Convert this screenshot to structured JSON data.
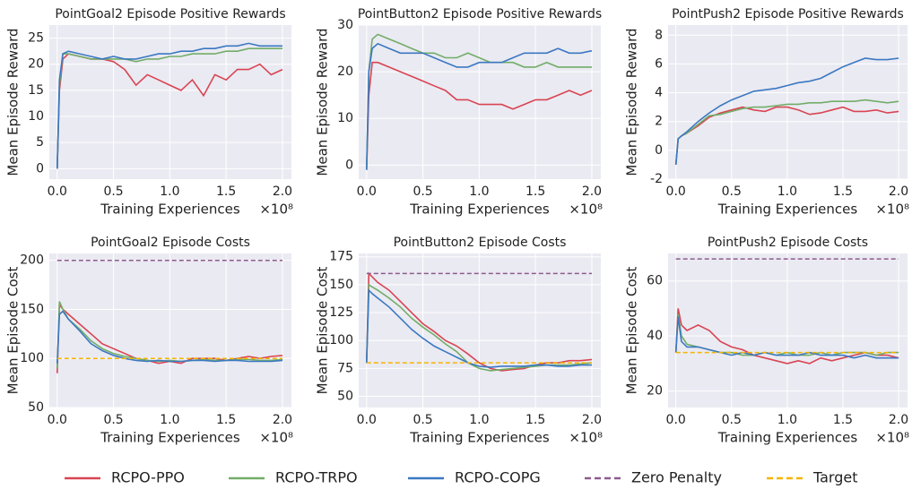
{
  "chart_data": [
    {
      "type": "line",
      "title": "PointGoal2 Episode Positive Rewards",
      "xlabel": "Training Experiences",
      "ylabel": "Mean Episode Reward",
      "x_offset_label": "×10⁸",
      "grid": true,
      "x": [
        0,
        0.02,
        0.05,
        0.1,
        0.2,
        0.3,
        0.4,
        0.5,
        0.6,
        0.7,
        0.8,
        0.9,
        1.0,
        1.1,
        1.2,
        1.3,
        1.4,
        1.5,
        1.6,
        1.7,
        1.8,
        1.9,
        2.0
      ],
      "xlim": [
        -0.07,
        2.08
      ],
      "xticks": [
        {
          "value": 0,
          "label": "0.0"
        },
        {
          "value": 0.5,
          "label": "0.5"
        },
        {
          "value": 1,
          "label": "1.0"
        },
        {
          "value": 1.5,
          "label": "1.5"
        },
        {
          "value": 2,
          "label": "2.0"
        }
      ],
      "ylim": [
        -2,
        27.5
      ],
      "yticks": [
        0,
        5,
        10,
        15,
        20,
        25
      ],
      "series": [
        {
          "name": "RCPO-PPO",
          "color": "#d94452",
          "values": [
            0,
            15,
            21,
            22,
            21.5,
            21,
            21,
            20.5,
            19,
            16,
            18,
            17,
            16,
            15,
            17,
            14,
            18,
            17,
            19,
            19,
            20,
            18,
            19
          ]
        },
        {
          "name": "RCPO-TRPO",
          "color": "#72ad68",
          "values": [
            0,
            16,
            22,
            22,
            21.5,
            21,
            21,
            21,
            21,
            20.5,
            21,
            21,
            21.5,
            21.5,
            22,
            22,
            22,
            22.5,
            22.5,
            23,
            23,
            23,
            23
          ]
        },
        {
          "name": "RCPO-COPG",
          "color": "#3b78c2",
          "values": [
            0,
            17,
            22,
            22.5,
            22,
            21.5,
            21,
            21.5,
            21,
            21,
            21.5,
            22,
            22,
            22.5,
            22.5,
            23,
            23,
            23.5,
            23.5,
            24,
            23.5,
            23.5,
            23.5
          ]
        }
      ]
    },
    {
      "type": "line",
      "title": "PointButton2 Episode Positive Rewards",
      "xlabel": "Training Experiences",
      "ylabel": "Mean Episode Reward",
      "x_offset_label": "×10⁸",
      "grid": true,
      "x": [
        0,
        0.02,
        0.05,
        0.1,
        0.2,
        0.3,
        0.4,
        0.5,
        0.6,
        0.7,
        0.8,
        0.9,
        1.0,
        1.1,
        1.2,
        1.3,
        1.4,
        1.5,
        1.6,
        1.7,
        1.8,
        1.9,
        2.0
      ],
      "xlim": [
        -0.07,
        2.08
      ],
      "xticks": [
        {
          "value": 0,
          "label": "0.0"
        },
        {
          "value": 0.5,
          "label": "0.5"
        },
        {
          "value": 1,
          "label": "1.0"
        },
        {
          "value": 1.5,
          "label": "1.5"
        },
        {
          "value": 2,
          "label": "2.0"
        }
      ],
      "ylim": [
        -3,
        30
      ],
      "yticks": [
        0,
        10,
        20,
        30
      ],
      "series": [
        {
          "name": "RCPO-PPO",
          "color": "#d94452",
          "values": [
            -1,
            15,
            22,
            22,
            21,
            20,
            19,
            18,
            17,
            16,
            14,
            14,
            13,
            13,
            13,
            12,
            13,
            14,
            14,
            15,
            16,
            15,
            16
          ]
        },
        {
          "name": "RCPO-TRPO",
          "color": "#72ad68",
          "values": [
            -1,
            20,
            27,
            28,
            27,
            26,
            25,
            24,
            24,
            23,
            23,
            24,
            23,
            22,
            22,
            22,
            21,
            21,
            22,
            21,
            21,
            21,
            21
          ]
        },
        {
          "name": "RCPO-COPG",
          "color": "#3b78c2",
          "values": [
            -1,
            20,
            25,
            26,
            25,
            24,
            24,
            24,
            23,
            22,
            21,
            21,
            22,
            22,
            22,
            23,
            24,
            24,
            24,
            25,
            24,
            24,
            24.5
          ]
        }
      ]
    },
    {
      "type": "line",
      "title": "PointPush2 Episode Positive Rewards",
      "xlabel": "Training Experiences",
      "ylabel": "Mean Episode Reward",
      "x_offset_label": "×10⁸",
      "grid": true,
      "x": [
        0,
        0.02,
        0.05,
        0.1,
        0.2,
        0.3,
        0.4,
        0.5,
        0.6,
        0.7,
        0.8,
        0.9,
        1.0,
        1.1,
        1.2,
        1.3,
        1.4,
        1.5,
        1.6,
        1.7,
        1.8,
        1.9,
        2.0
      ],
      "xlim": [
        -0.07,
        2.08
      ],
      "xticks": [
        {
          "value": 0,
          "label": "0.0"
        },
        {
          "value": 0.5,
          "label": "0.5"
        },
        {
          "value": 1,
          "label": "1.0"
        },
        {
          "value": 1.5,
          "label": "1.5"
        },
        {
          "value": 2,
          "label": "2.0"
        }
      ],
      "ylim": [
        -2,
        8.7
      ],
      "yticks": [
        -2,
        0,
        2,
        4,
        6,
        8
      ],
      "series": [
        {
          "name": "RCPO-PPO",
          "color": "#d94452",
          "values": [
            -1,
            0.8,
            1,
            1.2,
            1.7,
            2.3,
            2.6,
            2.8,
            3,
            2.8,
            2.7,
            3,
            3,
            2.8,
            2.5,
            2.6,
            2.8,
            3,
            2.7,
            2.7,
            2.8,
            2.6,
            2.7
          ]
        },
        {
          "name": "RCPO-TRPO",
          "color": "#72ad68",
          "values": [
            -1,
            0.8,
            1,
            1.2,
            1.8,
            2.4,
            2.5,
            2.7,
            2.9,
            3,
            3,
            3.1,
            3.2,
            3.2,
            3.3,
            3.3,
            3.4,
            3.4,
            3.4,
            3.5,
            3.4,
            3.3,
            3.4
          ]
        },
        {
          "name": "RCPO-COPG",
          "color": "#3b78c2",
          "values": [
            -1,
            0.8,
            1,
            1.3,
            2,
            2.6,
            3.1,
            3.5,
            3.8,
            4.1,
            4.2,
            4.3,
            4.5,
            4.7,
            4.8,
            5,
            5.4,
            5.8,
            6.1,
            6.4,
            6.3,
            6.3,
            6.4
          ]
        }
      ]
    },
    {
      "type": "line",
      "title": "PointGoal2 Episode Costs",
      "xlabel": "Training Experiences",
      "ylabel": "Mean Episode Cost",
      "x_offset_label": "×10⁸",
      "grid": true,
      "x": [
        0,
        0.02,
        0.05,
        0.1,
        0.2,
        0.3,
        0.4,
        0.5,
        0.6,
        0.7,
        0.8,
        0.9,
        1.0,
        1.1,
        1.2,
        1.3,
        1.4,
        1.5,
        1.6,
        1.7,
        1.8,
        1.9,
        2.0
      ],
      "xlim": [
        -0.07,
        2.08
      ],
      "xticks": [
        {
          "value": 0,
          "label": "0.0"
        },
        {
          "value": 0.5,
          "label": "0.5"
        },
        {
          "value": 1,
          "label": "1.0"
        },
        {
          "value": 1.5,
          "label": "1.5"
        },
        {
          "value": 2,
          "label": "2.0"
        }
      ],
      "ylim": [
        50,
        207
      ],
      "yticks": [
        50,
        100,
        150,
        200
      ],
      "series": [
        {
          "name": "RCPO-PPO",
          "color": "#d94452",
          "values": [
            85,
            155,
            150,
            145,
            135,
            125,
            115,
            110,
            105,
            100,
            98,
            95,
            97,
            95,
            100,
            100,
            100,
            98,
            100,
            102,
            100,
            102,
            103
          ]
        },
        {
          "name": "RCPO-TRPO",
          "color": "#72ad68",
          "values": [
            90,
            158,
            150,
            140,
            130,
            118,
            110,
            105,
            102,
            100,
            98,
            97,
            98,
            97,
            98,
            99,
            98,
            98,
            99,
            99,
            98,
            98,
            99
          ]
        },
        {
          "name": "RCPO-COPG",
          "color": "#3b78c2",
          "values": [
            95,
            145,
            148,
            140,
            128,
            115,
            108,
            103,
            100,
            98,
            97,
            98,
            97,
            97,
            98,
            98,
            97,
            98,
            98,
            97,
            97,
            97,
            98
          ]
        },
        {
          "name": "Zero Penalty",
          "color": "#8e5a8e",
          "dashed": true,
          "x": [
            0,
            2
          ],
          "values": [
            200,
            200
          ]
        },
        {
          "name": "Target",
          "color": "#f5b400",
          "dashed": true,
          "x": [
            0,
            2
          ],
          "values": [
            100,
            100
          ]
        }
      ]
    },
    {
      "type": "line",
      "title": "PointButton2 Episode Costs",
      "xlabel": "Training Experiences",
      "ylabel": "Mean Episode Cost",
      "x_offset_label": "×10⁸",
      "grid": true,
      "x": [
        0,
        0.02,
        0.05,
        0.1,
        0.2,
        0.3,
        0.4,
        0.5,
        0.6,
        0.7,
        0.8,
        0.9,
        1.0,
        1.1,
        1.2,
        1.3,
        1.4,
        1.5,
        1.6,
        1.7,
        1.8,
        1.9,
        2.0
      ],
      "xlim": [
        -0.07,
        2.08
      ],
      "xticks": [
        {
          "value": 0,
          "label": "0.0"
        },
        {
          "value": 0.5,
          "label": "0.5"
        },
        {
          "value": 1,
          "label": "1.0"
        },
        {
          "value": 1.5,
          "label": "1.5"
        },
        {
          "value": 2,
          "label": "2.0"
        }
      ],
      "ylim": [
        40,
        178
      ],
      "yticks": [
        50,
        75,
        100,
        125,
        150,
        175
      ],
      "series": [
        {
          "name": "RCPO-PPO",
          "color": "#d94452",
          "values": [
            80,
            160,
            157,
            152,
            145,
            135,
            125,
            115,
            108,
            100,
            95,
            88,
            80,
            75,
            73,
            74,
            75,
            78,
            80,
            80,
            82,
            82,
            83
          ]
        },
        {
          "name": "RCPO-TRPO",
          "color": "#72ad68",
          "values": [
            80,
            150,
            148,
            145,
            138,
            130,
            120,
            112,
            105,
            97,
            90,
            80,
            75,
            73,
            74,
            75,
            76,
            77,
            78,
            78,
            78,
            79,
            80
          ]
        },
        {
          "name": "RCPO-COPG",
          "color": "#3b78c2",
          "values": [
            80,
            145,
            142,
            138,
            130,
            120,
            110,
            102,
            95,
            90,
            85,
            80,
            77,
            76,
            77,
            77,
            77,
            78,
            78,
            77,
            77,
            78,
            78
          ]
        },
        {
          "name": "Zero Penalty",
          "color": "#8e5a8e",
          "dashed": true,
          "x": [
            0,
            2
          ],
          "values": [
            160,
            160
          ]
        },
        {
          "name": "Target",
          "color": "#f5b400",
          "dashed": true,
          "x": [
            0,
            2
          ],
          "values": [
            80,
            80
          ]
        }
      ]
    },
    {
      "type": "line",
      "title": "PointPush2 Episode Costs",
      "xlabel": "Training Experiences",
      "ylabel": "Mean Episode Cost",
      "x_offset_label": "×10⁸",
      "grid": true,
      "x": [
        0,
        0.02,
        0.05,
        0.1,
        0.2,
        0.3,
        0.4,
        0.5,
        0.6,
        0.7,
        0.8,
        0.9,
        1.0,
        1.1,
        1.2,
        1.3,
        1.4,
        1.5,
        1.6,
        1.7,
        1.8,
        1.9,
        2.0
      ],
      "xlim": [
        -0.07,
        2.08
      ],
      "xticks": [
        {
          "value": 0,
          "label": "0.0"
        },
        {
          "value": 0.5,
          "label": "0.5"
        },
        {
          "value": 1,
          "label": "1.0"
        },
        {
          "value": 1.5,
          "label": "1.5"
        },
        {
          "value": 2,
          "label": "2.0"
        }
      ],
      "ylim": [
        14,
        70
      ],
      "yticks": [
        20,
        40,
        60
      ],
      "series": [
        {
          "name": "RCPO-PPO",
          "color": "#d94452",
          "values": [
            34,
            50,
            44,
            42,
            44,
            42,
            38,
            36,
            35,
            33,
            32,
            31,
            30,
            31,
            30,
            32,
            31,
            32,
            33,
            34,
            33,
            33,
            32
          ]
        },
        {
          "name": "RCPO-TRPO",
          "color": "#72ad68",
          "values": [
            34,
            48,
            40,
            37,
            36,
            35,
            34,
            34,
            33,
            33,
            34,
            33,
            34,
            33,
            33,
            34,
            33,
            34,
            34,
            34,
            33,
            34,
            34
          ]
        },
        {
          "name": "RCPO-COPG",
          "color": "#3b78c2",
          "values": [
            34,
            47,
            38,
            36,
            36,
            35,
            34,
            33,
            34,
            33,
            34,
            33,
            33,
            33,
            34,
            33,
            33,
            33,
            32,
            33,
            32,
            32,
            32
          ]
        },
        {
          "name": "Zero Penalty",
          "color": "#8e5a8e",
          "dashed": true,
          "x": [
            0,
            2
          ],
          "values": [
            68,
            68
          ]
        },
        {
          "name": "Target",
          "color": "#f5b400",
          "dashed": true,
          "x": [
            0,
            2
          ],
          "values": [
            34,
            34
          ]
        }
      ]
    }
  ]
}
